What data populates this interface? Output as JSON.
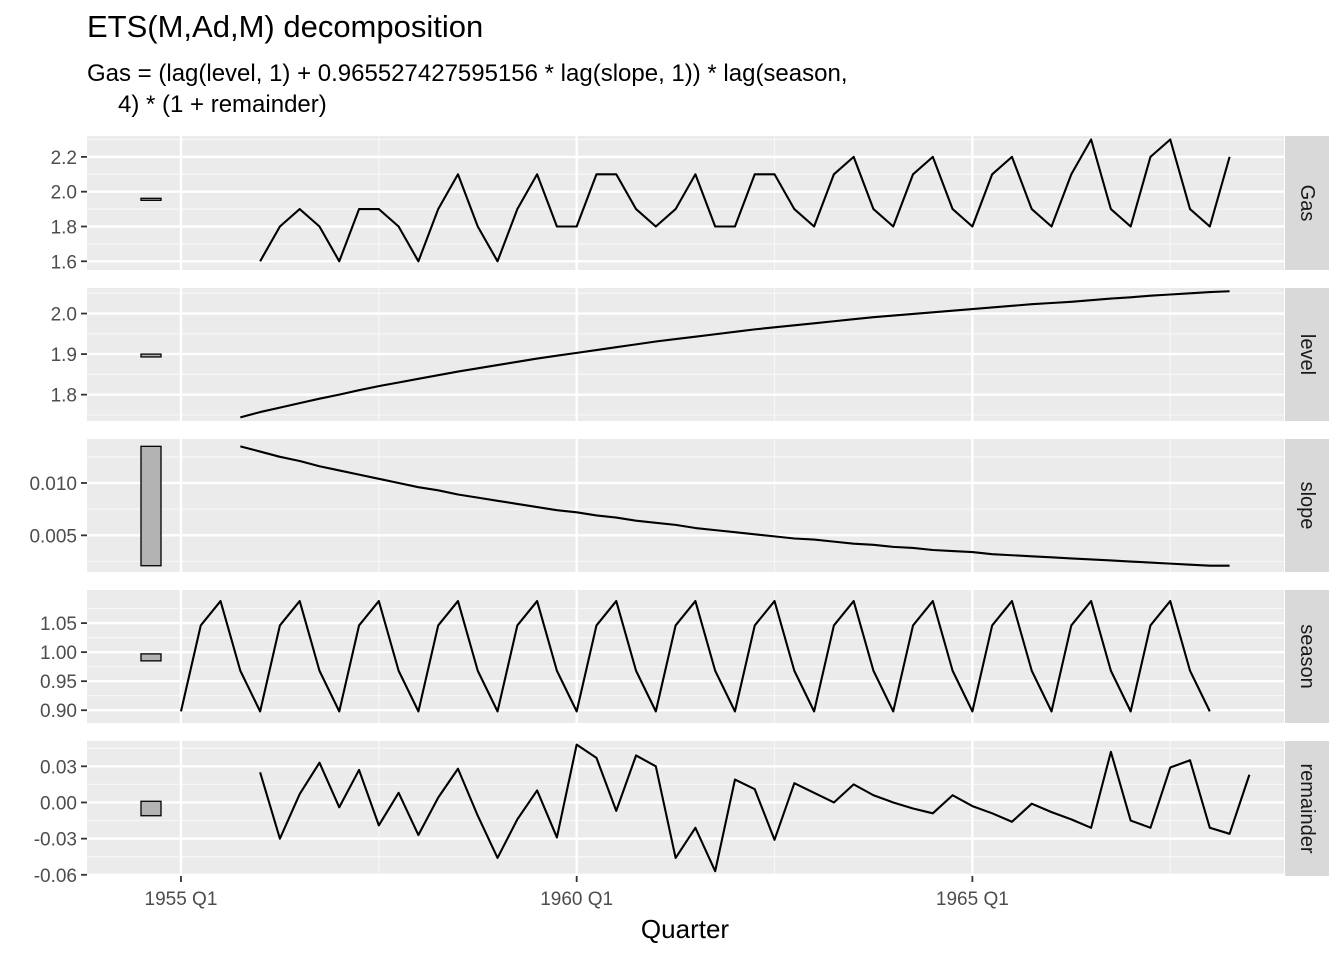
{
  "chart_data": {
    "type": "line",
    "title": "ETS(M,Ad,M) decomposition",
    "subtitle_line1": "Gas = (lag(level, 1) + 0.965527427595156 * lag(slope, 1)) * lag(season,",
    "subtitle_line2": "4) * (1 + remainder)",
    "xlabel": "Quarter",
    "x_start": "1955 Q1",
    "x_ticks": [
      {
        "label": "1955 Q1",
        "index": 0
      },
      {
        "label": "1960 Q1",
        "index": 20
      },
      {
        "label": "1965 Q1",
        "index": 40
      }
    ],
    "x_range": [
      -4.75,
      55.75
    ],
    "panels": [
      {
        "strip": "Gas",
        "ylim": [
          1.55,
          2.32
        ],
        "y_ticks": [
          {
            "label": "1.6",
            "v": 1.6
          },
          {
            "label": "1.8",
            "v": 1.8
          },
          {
            "label": "2.0",
            "v": 2.0
          },
          {
            "label": "2.2",
            "v": 2.2
          }
        ],
        "scale_bar": [
          1.956,
          1.962
        ],
        "start_index": 4,
        "values": [
          1.6,
          1.8,
          1.9,
          1.8,
          1.6,
          1.9,
          1.9,
          1.8,
          1.6,
          1.9,
          2.1,
          1.8,
          1.6,
          1.9,
          2.1,
          1.8,
          1.8,
          2.1,
          2.1,
          1.9,
          1.8,
          1.9,
          2.1,
          1.8,
          1.8,
          2.1,
          2.1,
          1.9,
          1.8,
          2.1,
          2.2,
          1.9,
          1.8,
          2.1,
          2.2,
          1.9,
          1.8,
          2.1,
          2.2,
          1.9,
          1.8,
          2.1,
          2.3,
          1.9,
          1.8,
          2.2,
          2.3,
          1.9,
          1.8,
          2.2
        ]
      },
      {
        "strip": "level",
        "ylim": [
          1.735,
          2.063
        ],
        "y_ticks": [
          {
            "label": "1.8",
            "v": 1.8
          },
          {
            "label": "1.9",
            "v": 1.9
          },
          {
            "label": "2.0",
            "v": 2.0
          }
        ],
        "scale_bar": [
          1.893,
          1.9
        ],
        "start_index": 3,
        "values": [
          1.744,
          1.757,
          1.768,
          1.779,
          1.79,
          1.8,
          1.811,
          1.821,
          1.83,
          1.839,
          1.848,
          1.857,
          1.865,
          1.873,
          1.881,
          1.889,
          1.896,
          1.903,
          1.91,
          1.917,
          1.924,
          1.931,
          1.937,
          1.943,
          1.949,
          1.955,
          1.961,
          1.966,
          1.971,
          1.976,
          1.981,
          1.986,
          1.991,
          1.995,
          1.999,
          2.003,
          2.007,
          2.011,
          2.015,
          2.019,
          2.023,
          2.026,
          2.029,
          2.033,
          2.037,
          2.04,
          2.044,
          2.047,
          2.05,
          2.053,
          2.055
        ]
      },
      {
        "strip": "slope",
        "ylim": [
          0.0015,
          0.0142
        ],
        "y_ticks": [
          {
            "label": "0.005",
            "v": 0.005
          },
          {
            "label": "0.010",
            "v": 0.01
          }
        ],
        "scale_bar": [
          0.0021,
          0.0135
        ],
        "start_index": 3,
        "values": [
          0.0135,
          0.013,
          0.0125,
          0.0121,
          0.0116,
          0.0112,
          0.0108,
          0.0104,
          0.01,
          0.0096,
          0.0093,
          0.0089,
          0.0086,
          0.0083,
          0.008,
          0.0077,
          0.0074,
          0.0072,
          0.0069,
          0.0067,
          0.0064,
          0.0062,
          0.006,
          0.0057,
          0.0055,
          0.0053,
          0.0051,
          0.0049,
          0.0047,
          0.0046,
          0.0044,
          0.0042,
          0.0041,
          0.0039,
          0.0038,
          0.0036,
          0.0035,
          0.0034,
          0.0032,
          0.0031,
          0.003,
          0.0029,
          0.0028,
          0.0027,
          0.0026,
          0.0025,
          0.0024,
          0.0023,
          0.0022,
          0.0021,
          0.0021
        ]
      },
      {
        "strip": "season",
        "ylim": [
          0.878,
          1.107
        ],
        "y_ticks": [
          {
            "label": "0.90",
            "v": 0.9
          },
          {
            "label": "0.95",
            "v": 0.95
          },
          {
            "label": "1.00",
            "v": 1.0
          },
          {
            "label": "1.05",
            "v": 1.05
          }
        ],
        "scale_bar": [
          0.985,
          0.997
        ],
        "start_index": 0,
        "pattern": [
          0.898,
          1.046,
          1.088,
          0.968
        ],
        "count": 53
      },
      {
        "strip": "remainder",
        "ylim": [
          -0.061,
          0.051
        ],
        "y_ticks": [
          {
            "label": "-0.06",
            "v": -0.06
          },
          {
            "label": "-0.03",
            "v": -0.03
          },
          {
            "label": "0.00",
            "v": 0.0
          },
          {
            "label": "0.03",
            "v": 0.03
          }
        ],
        "scale_bar": [
          -0.011,
          0.001
        ],
        "start_index": 4,
        "values": [
          0.025,
          -0.03,
          0.007,
          0.033,
          -0.004,
          0.027,
          -0.019,
          0.008,
          -0.027,
          0.004,
          0.028,
          -0.011,
          -0.046,
          -0.014,
          0.01,
          -0.029,
          0.048,
          0.037,
          -0.007,
          0.039,
          0.03,
          -0.046,
          -0.021,
          -0.057,
          0.019,
          0.011,
          -0.031,
          0.016,
          0.008,
          0.0,
          0.015,
          0.006,
          0.0,
          -0.005,
          -0.009,
          0.006,
          -0.003,
          -0.009,
          -0.016,
          -0.001,
          -0.008,
          -0.014,
          -0.021,
          0.042,
          -0.015,
          -0.021,
          0.029,
          0.035,
          -0.021,
          -0.026,
          0.023
        ]
      }
    ]
  }
}
